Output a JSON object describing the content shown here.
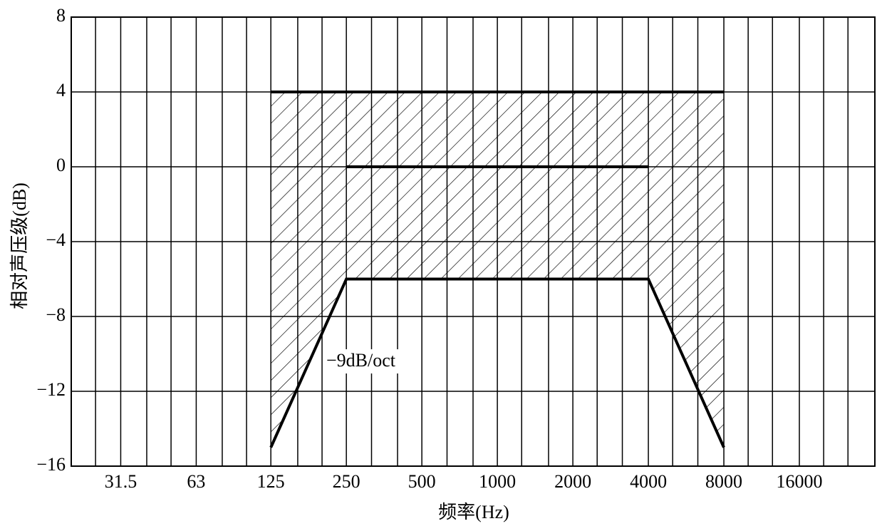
{
  "chart_data": {
    "type": "line",
    "y_label": "相对声压级(dB)",
    "x_label": "频率(Hz)",
    "annotation": "−9dB/oct",
    "xscale": "log",
    "xlim": [
      20,
      32000
    ],
    "xticks": [
      31.5,
      63,
      125,
      250,
      500,
      1000,
      2000,
      4000,
      8000,
      16000
    ],
    "x_minor_grid": [
      25,
      40,
      50,
      80,
      100,
      160,
      200,
      315,
      400,
      630,
      800,
      1250,
      1600,
      2500,
      3150,
      5000,
      6300,
      10000,
      12500,
      20000,
      25000
    ],
    "ylim": [
      -16,
      8
    ],
    "yticks": [
      8,
      4,
      0,
      {
        "value": -4,
        "label": "−4"
      },
      {
        "value": -8,
        "label": "−8"
      },
      {
        "value": -12,
        "label": "−12"
      },
      {
        "value": -16,
        "label": "−16"
      }
    ],
    "grid": true,
    "hatch_between": [
      0,
      2
    ],
    "series": [
      {
        "color": "#000000",
        "x": [
          125,
          8000
        ],
        "values": [
          4,
          4
        ]
      },
      {
        "color": "#000000",
        "x": [
          250,
          4000
        ],
        "values": [
          0,
          0
        ]
      },
      {
        "color": "#000000",
        "x": [
          125,
          250,
          4000,
          8000
        ],
        "values": [
          -15,
          -6,
          -6,
          -15
        ]
      }
    ]
  }
}
